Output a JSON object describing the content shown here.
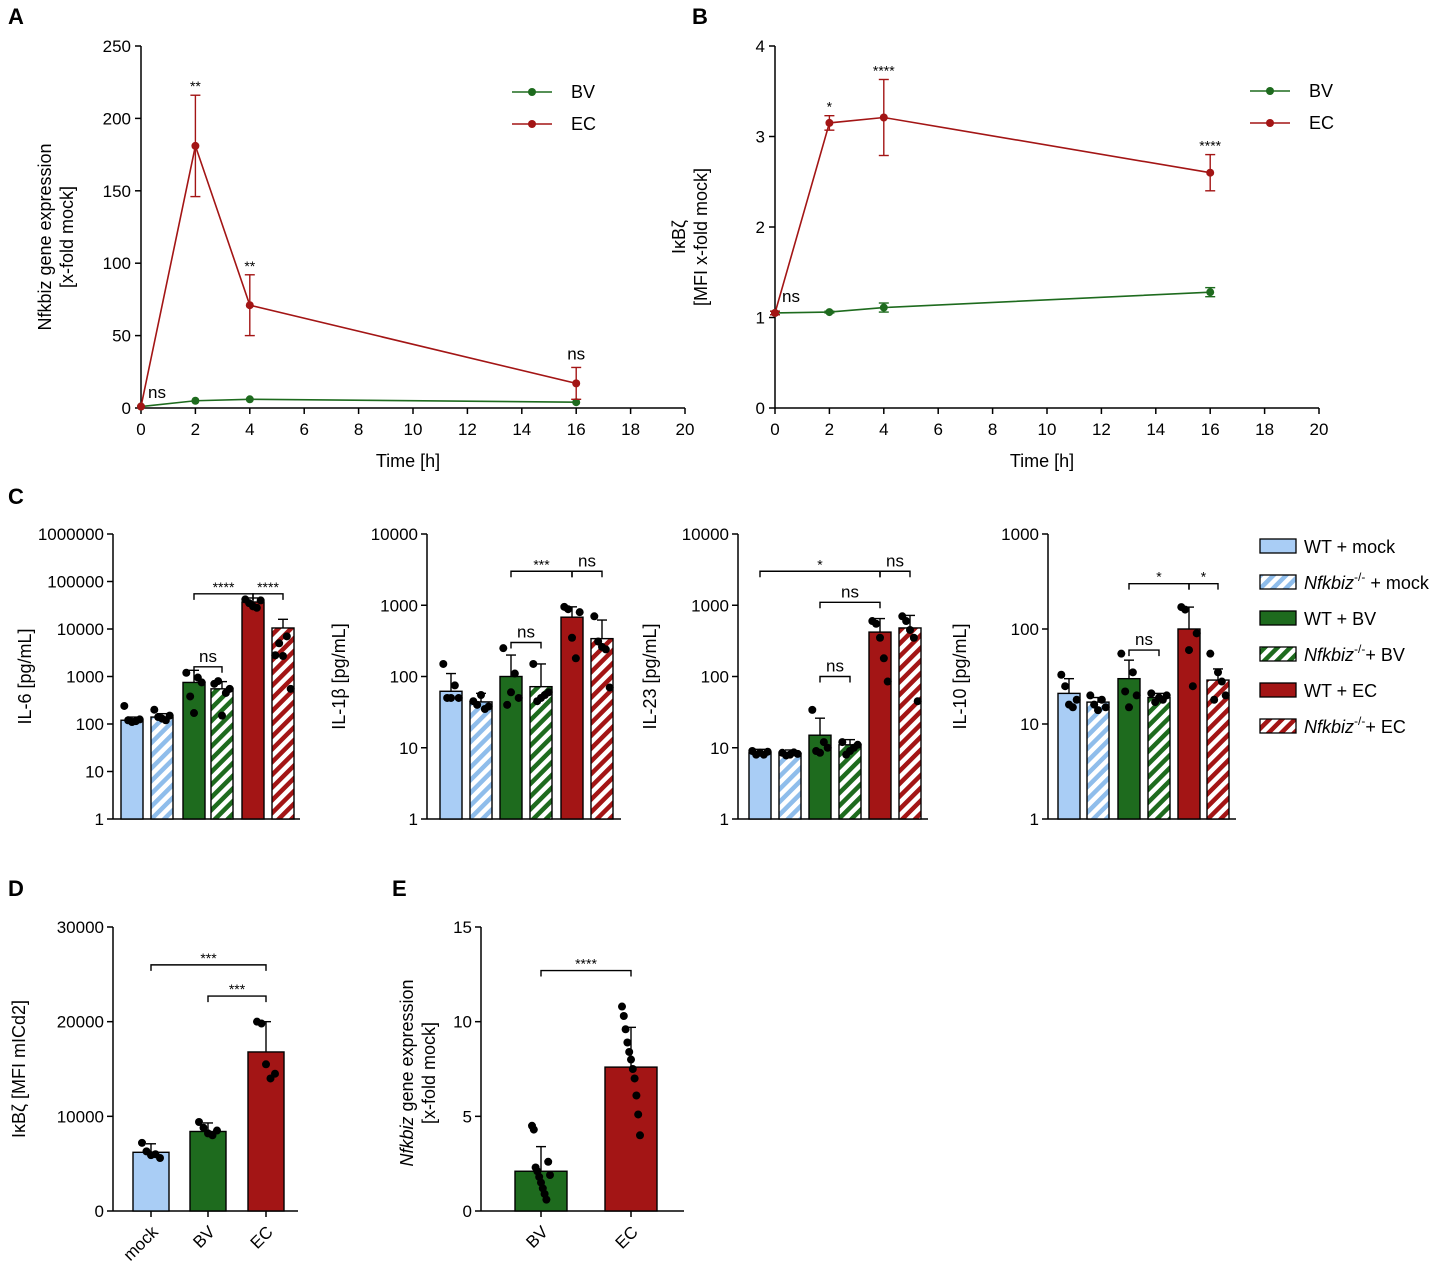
{
  "colors": {
    "bv": "#1e6b1e",
    "ec": "#a31515",
    "mock": "#a9cdf5",
    "mock_stripe": "#8fbdeb",
    "axis": "#000000"
  },
  "panel_letters": [
    "A",
    "B",
    "C",
    "D",
    "E"
  ],
  "chart_data": [
    {
      "id": "A",
      "type": "line",
      "title": "",
      "xlabel": "Time [h]",
      "ylabel_lines": [
        "Nfkbiz gene expression",
        "[x-fold mock]"
      ],
      "xlim": [
        0,
        20
      ],
      "ylim": [
        0,
        250
      ],
      "xticks": [
        "0",
        "2",
        "4",
        "6",
        "8",
        "10",
        "12",
        "14",
        "16",
        "18",
        "20"
      ],
      "yticks": [
        "0",
        "50",
        "100",
        "150",
        "200",
        "250"
      ],
      "legend_position": "top-right",
      "series": [
        {
          "name": "BV",
          "x": [
            0,
            2,
            4,
            16
          ],
          "y": [
            1,
            5,
            6,
            4
          ],
          "err": [
            0,
            0,
            0,
            0
          ]
        },
        {
          "name": "EC",
          "x": [
            0,
            2,
            4,
            16
          ],
          "y": [
            1,
            181,
            71,
            17
          ],
          "err": [
            0,
            35,
            21,
            11
          ]
        }
      ],
      "annotations": [
        {
          "text": "ns",
          "x": 0
        },
        {
          "text": "**",
          "x": 2
        },
        {
          "text": "**",
          "x": 4
        },
        {
          "text": "ns",
          "x": 16
        }
      ]
    },
    {
      "id": "B",
      "type": "line",
      "title": "",
      "xlabel": "Time [h]",
      "ylabel_lines": [
        "IκBζ",
        "[MFI x-fold mock]"
      ],
      "xlim": [
        0,
        20
      ],
      "ylim": [
        0,
        4
      ],
      "xticks": [
        "0",
        "2",
        "4",
        "6",
        "8",
        "10",
        "12",
        "14",
        "16",
        "18",
        "20"
      ],
      "yticks": [
        "0",
        "1",
        "2",
        "3",
        "4"
      ],
      "legend_position": "top-right",
      "series": [
        {
          "name": "BV",
          "x": [
            0,
            2,
            4,
            16
          ],
          "y": [
            1.05,
            1.06,
            1.11,
            1.28
          ],
          "err": [
            0.02,
            0.01,
            0.05,
            0.05
          ]
        },
        {
          "name": "EC",
          "x": [
            0,
            2,
            4,
            16
          ],
          "y": [
            1.05,
            3.15,
            3.21,
            2.6
          ],
          "err": [
            0.02,
            0.08,
            0.42,
            0.2
          ]
        }
      ],
      "annotations": [
        {
          "text": "ns",
          "x": 0
        },
        {
          "text": "*",
          "x": 2
        },
        {
          "text": "****",
          "x": 4
        },
        {
          "text": "****",
          "x": 16
        }
      ]
    },
    {
      "id": "C1",
      "type": "bar",
      "scale": "log",
      "ylabel": "IL-6 [pg/mL]",
      "ylim": [
        1,
        1000000
      ],
      "yticks": [
        "1",
        "10",
        "100",
        "1000",
        "10000",
        "100000",
        "1000000"
      ],
      "categories": [
        "WT + mock",
        "Nfkbiz-/- + mock",
        "WT + BV",
        "Nfkbiz-/-+ BV",
        "WT + EC",
        "Nfkbiz-/-+ EC"
      ],
      "values": [
        120,
        140,
        750,
        550,
        37000,
        10500
      ],
      "err_upper": [
        140,
        165,
        1350,
        780,
        45000,
        16000
      ],
      "points": [
        [
          240,
          120,
          110,
          115,
          125
        ],
        [
          200,
          140,
          130,
          120,
          150
        ],
        [
          1200,
          380,
          170,
          950,
          750
        ],
        [
          700,
          800,
          150,
          450,
          550
        ],
        [
          42000,
          35000,
          30000,
          28000,
          40000
        ],
        [
          2800,
          5000,
          2700,
          7000,
          550
        ]
      ],
      "brackets": [
        {
          "from": 2,
          "to": 4,
          "level": 55000,
          "text": "****"
        },
        {
          "from": 4,
          "to": 5,
          "level": 55000,
          "text": "****"
        },
        {
          "from": 2,
          "to": 3,
          "level": 1600,
          "text": "ns"
        }
      ]
    },
    {
      "id": "C2",
      "type": "bar",
      "scale": "log",
      "ylabel": "IL-1β [pg/mL]",
      "ylim": [
        1,
        10000
      ],
      "yticks": [
        "1",
        "10",
        "100",
        "1000",
        "10000"
      ],
      "categories": [
        "WT + mock",
        "Nfkbiz-/- + mock",
        "WT + BV",
        "Nfkbiz-/-+ BV",
        "WT + EC",
        "Nfkbiz-/-+ EC"
      ],
      "values": [
        62,
        44,
        100,
        72,
        680,
        340
      ],
      "err_upper": [
        110,
        58,
        200,
        150,
        950,
        620
      ],
      "points": [
        [
          150,
          50,
          50,
          75,
          50
        ],
        [
          45,
          40,
          55,
          35,
          38
        ],
        [
          250,
          40,
          60,
          110,
          50
        ],
        [
          150,
          45,
          50,
          55,
          60
        ],
        [
          950,
          880,
          350,
          180,
          800
        ],
        [
          700,
          310,
          260,
          240,
          70
        ]
      ],
      "brackets": [
        {
          "from": 2,
          "to": 4,
          "level": 3000,
          "text": "***"
        },
        {
          "from": 4,
          "to": 5,
          "level": 3000,
          "text": "ns"
        },
        {
          "from": 2,
          "to": 3,
          "level": 300,
          "text": "ns"
        }
      ]
    },
    {
      "id": "C3",
      "type": "bar",
      "scale": "log",
      "ylabel": "IL-23 [pg/mL]",
      "ylim": [
        1,
        10000
      ],
      "yticks": [
        "1",
        "10",
        "100",
        "1000",
        "10000"
      ],
      "categories": [
        "WT + mock",
        "Nfkbiz-/- + mock",
        "WT + BV",
        "Nfkbiz-/-+ BV",
        "WT + EC",
        "Nfkbiz-/-+ EC"
      ],
      "values": [
        8.5,
        8.3,
        15,
        11,
        420,
        480
      ],
      "err_upper": [
        9.5,
        9.3,
        26,
        13,
        650,
        720
      ],
      "points": [
        [
          9,
          8,
          8.5,
          8,
          8.8
        ],
        [
          8.5,
          7.8,
          8,
          8.6,
          8.2
        ],
        [
          34,
          9,
          8.5,
          12,
          10
        ],
        [
          12,
          8,
          9,
          10,
          11
        ],
        [
          600,
          550,
          350,
          180,
          85
        ],
        [
          700,
          600,
          450,
          350,
          45
        ]
      ],
      "brackets": [
        {
          "from": 0,
          "to": 4,
          "level": 3000,
          "text": "*"
        },
        {
          "from": 4,
          "to": 5,
          "level": 3000,
          "text": "ns"
        },
        {
          "from": 2,
          "to": 4,
          "level": 1100,
          "text": "ns"
        },
        {
          "from": 2,
          "to": 3,
          "level": 100,
          "text": "ns"
        }
      ]
    },
    {
      "id": "C4",
      "type": "bar",
      "scale": "log",
      "ylabel": "IL-10 [pg/mL]",
      "ylim": [
        1,
        1000
      ],
      "yticks": [
        "1",
        "10",
        "100",
        "1000"
      ],
      "categories": [
        "WT + mock",
        "Nfkbiz-/- + mock",
        "WT + BV",
        "Nfkbiz-/-+ BV",
        "WT + EC",
        "Nfkbiz-/-+ EC"
      ],
      "values": [
        21,
        17,
        30,
        19,
        100,
        29
      ],
      "err_upper": [
        30,
        19,
        47,
        21,
        170,
        38
      ],
      "points": [
        [
          33,
          25,
          16,
          15,
          18
        ],
        [
          20,
          16,
          14,
          18,
          15
        ],
        [
          55,
          22,
          15,
          35,
          20
        ],
        [
          21,
          17,
          19,
          18,
          20
        ],
        [
          170,
          160,
          60,
          25,
          90
        ],
        [
          55,
          18,
          35,
          28,
          20
        ]
      ],
      "brackets": [
        {
          "from": 2,
          "to": 4,
          "level": 300,
          "text": "*"
        },
        {
          "from": 4,
          "to": 5,
          "level": 300,
          "text": "*"
        },
        {
          "from": 2,
          "to": 3,
          "level": 60,
          "text": "ns"
        }
      ]
    },
    {
      "id": "D",
      "type": "bar",
      "scale": "linear",
      "ylabel": "IκBζ [MFI mICd2]",
      "ylim": [
        0,
        30000
      ],
      "yticks": [
        "0",
        "10000",
        "20000",
        "30000"
      ],
      "categories": [
        "mock",
        "BV",
        "EC"
      ],
      "values": [
        6200,
        8400,
        16800
      ],
      "err_upper": [
        7100,
        9300,
        20000
      ],
      "points": [
        [
          7200,
          6300,
          5900,
          6000,
          5600
        ],
        [
          9400,
          8800,
          8200,
          8000,
          8500
        ],
        [
          20000,
          19800,
          15500,
          14000,
          14500
        ]
      ],
      "brackets": [
        {
          "from": 0,
          "to": 2,
          "level": 26000,
          "text": "***"
        },
        {
          "from": 1,
          "to": 2,
          "level": 22700,
          "text": "***"
        }
      ]
    },
    {
      "id": "E",
      "type": "bar",
      "scale": "linear",
      "ylabel_lines": [
        "Nfkbiz gene expression",
        "[x-fold mock]"
      ],
      "ylim": [
        0,
        15
      ],
      "yticks": [
        "0",
        "5",
        "10",
        "15"
      ],
      "categories": [
        "BV",
        "EC"
      ],
      "values": [
        2.1,
        7.6
      ],
      "err_upper": [
        3.4,
        9.7
      ],
      "points": [
        [
          4.5,
          4.3,
          2.3,
          2.1,
          1.8,
          1.5,
          1.2,
          0.9,
          0.6,
          2.6,
          1.9
        ],
        [
          10.8,
          10.3,
          9.6,
          8.9,
          8.4,
          8.0,
          7.5,
          7.0,
          6.1,
          5.1,
          4.0
        ]
      ],
      "brackets": [
        {
          "from": 0,
          "to": 1,
          "level": 12.7,
          "text": "****"
        }
      ]
    }
  ],
  "legend_c": [
    {
      "label": "WT + mock",
      "sup": "",
      "rest": ""
    },
    {
      "label": "Nfkbiz",
      "sup": "-/-",
      "rest": " + mock"
    },
    {
      "label": "WT + BV",
      "sup": "",
      "rest": ""
    },
    {
      "label": "Nfkbiz",
      "sup": "-/-",
      "rest": "+ BV"
    },
    {
      "label": "WT + EC",
      "sup": "",
      "rest": ""
    },
    {
      "label": "Nfkbiz",
      "sup": "-/-",
      "rest": "+ EC"
    }
  ]
}
